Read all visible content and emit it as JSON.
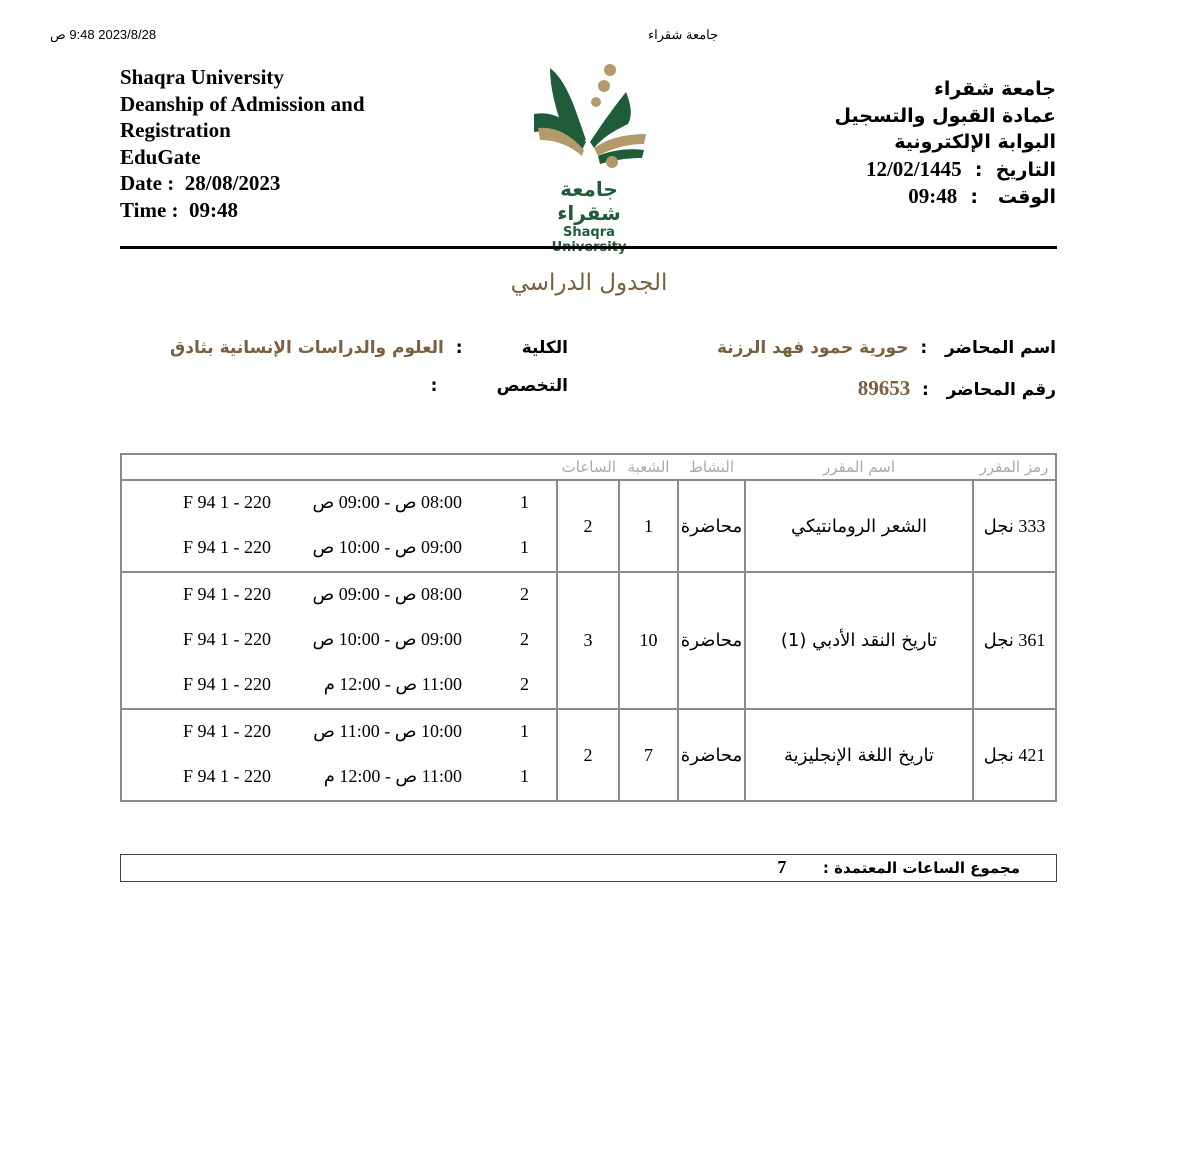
{
  "print_header": {
    "datetime": "ص 9:48 2023/8/28",
    "title": "جامعة شقراء"
  },
  "header_en": {
    "lines": [
      "Shaqra University",
      "Deanship of Admission and",
      "Registration",
      "EduGate"
    ],
    "date_label": "Date",
    "date": "28/08/2023",
    "time_label": "Time",
    "time": "09:48"
  },
  "logo": {
    "arabic": "جامعة شقراء",
    "english": "Shaqra University",
    "green": "#1f5c3a",
    "tan": "#b39a6b"
  },
  "header_ar": {
    "lines": [
      "جامعة شقراء",
      "عمادة القبول والتسجيل",
      "البوابة الإلكترونية"
    ],
    "date_label": "التاريخ",
    "date": "12/02/1445",
    "time_label": "الوقت",
    "time": "09:48"
  },
  "page_title": "الجدول الدراسي",
  "info": {
    "lecturer_name_label": "اسم المحاضر",
    "lecturer_name": "حورية حمود فهد الرزنة",
    "lecturer_id_label": "رقم المحاضر",
    "lecturer_id": "89653",
    "college_label": "الكلية",
    "college": "العلوم والدراسات الإنسانية بثادق",
    "major_label": "التخصص",
    "major": ""
  },
  "table": {
    "headers": [
      "رمز المقرر",
      "اسم المقرر",
      "النشاط",
      "الشعبة",
      "الساعات",
      ""
    ],
    "rows": [
      {
        "code": "333 نجل",
        "name": "الشعر الرومانتيكي",
        "activity": "محاضرة",
        "section": "1",
        "hours": "2",
        "slots": [
          {
            "day": "1",
            "time": "08:00 ص - 09:00 ص",
            "room": "F 94 1 - 220"
          },
          {
            "day": "1",
            "time": "09:00 ص - 10:00 ص",
            "room": "F 94 1 - 220"
          }
        ]
      },
      {
        "code": "361 نجل",
        "name": "تاريخ النقد الأدبي (1)",
        "activity": "محاضرة",
        "section": "10",
        "hours": "3",
        "slots": [
          {
            "day": "2",
            "time": "08:00 ص - 09:00 ص",
            "room": "F 94 1 - 220"
          },
          {
            "day": "2",
            "time": "09:00 ص - 10:00 ص",
            "room": "F 94 1 - 220"
          },
          {
            "day": "2",
            "time": "11:00 ص - 12:00 م",
            "room": "F 94 1 - 220"
          }
        ]
      },
      {
        "code": "421 نجل",
        "name": "تاريخ اللغة الإنجليزية",
        "activity": "محاضرة",
        "section": "7",
        "hours": "2",
        "slots": [
          {
            "day": "1",
            "time": "10:00 ص - 11:00 ص",
            "room": "F 94 1 - 220"
          },
          {
            "day": "1",
            "time": "11:00 ص - 12:00 م",
            "room": "F 94 1 - 220"
          }
        ]
      }
    ]
  },
  "total": {
    "label": "مجموع الساعات المعتمدة",
    "value": "7"
  }
}
